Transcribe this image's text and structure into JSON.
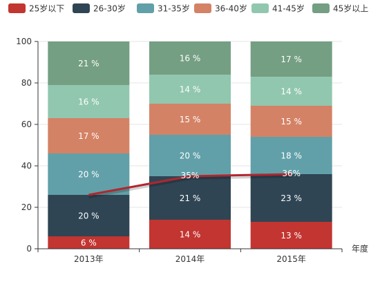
{
  "chart_data": {
    "type": "bar",
    "stacked": true,
    "categories": [
      "2013年",
      "2014年",
      "2015年"
    ],
    "xlabel": "年度",
    "ylabel": "",
    "ylim": [
      0,
      100
    ],
    "yticks": [
      0,
      20,
      40,
      60,
      80,
      100
    ],
    "legend_position": "top",
    "series": [
      {
        "name": "25岁以下",
        "color": "#c23531",
        "values": [
          6,
          14,
          13
        ],
        "labels": [
          "6 %",
          "14 %",
          "13 %"
        ]
      },
      {
        "name": "26-30岁",
        "color": "#2f4554",
        "values": [
          20,
          21,
          23
        ],
        "labels": [
          "20 %",
          "21 %",
          "23 %"
        ]
      },
      {
        "name": "31-35岁",
        "color": "#61a0a8",
        "values": [
          20,
          20,
          18
        ],
        "labels": [
          "20 %",
          "20 %",
          "18 %"
        ]
      },
      {
        "name": "36-40岁",
        "color": "#d48265",
        "values": [
          17,
          15,
          15
        ],
        "labels": [
          "17 %",
          "15 %",
          "15 %"
        ]
      },
      {
        "name": "41-45岁",
        "color": "#91c7ae",
        "values": [
          16,
          14,
          14
        ],
        "labels": [
          "16 %",
          "14 %",
          "14 %"
        ]
      },
      {
        "name": "45岁以上",
        "color": "#749f83",
        "values": [
          21,
          16,
          17
        ],
        "labels": [
          "21 %",
          "16 %",
          "17 %"
        ]
      }
    ],
    "line": {
      "color": "#b2262f",
      "values": [
        26,
        35,
        36
      ],
      "labels": [
        "",
        "35%",
        "36%"
      ]
    }
  }
}
